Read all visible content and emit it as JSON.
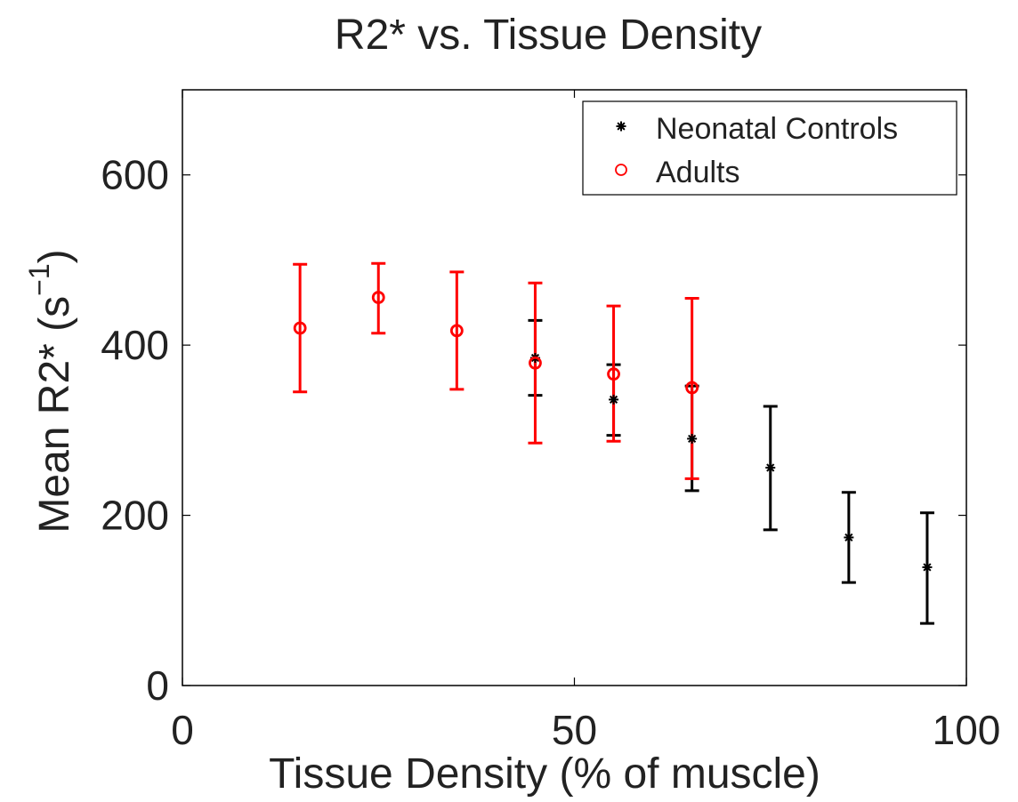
{
  "chart_data": {
    "type": "scatter",
    "title": "R2* vs. Tissue Density",
    "xlabel": "Tissue Density (% of muscle)",
    "ylabel_main": "Mean R2* (s",
    "ylabel_sup": "−1",
    "ylabel_close": ")",
    "xlim": [
      0,
      100
    ],
    "ylim": [
      0,
      700
    ],
    "xticks": [
      0,
      50,
      100
    ],
    "yticks": [
      0,
      200,
      400,
      600
    ],
    "xtick_labels": [
      "0",
      "50",
      "100"
    ],
    "ytick_labels": [
      "0",
      "200",
      "400",
      "600"
    ],
    "grid": false,
    "legend_position": "top-right",
    "series": [
      {
        "name": "Neonatal Controls",
        "marker": "asterisk",
        "color": "#000000",
        "x": [
          45,
          55,
          65,
          75,
          85,
          95
        ],
        "y": [
          385,
          336,
          290,
          256,
          174,
          139
        ],
        "err_low": [
          341,
          294,
          229,
          183,
          121,
          73
        ],
        "err_high": [
          429,
          377,
          352,
          328,
          227,
          203
        ]
      },
      {
        "name": "Adults",
        "marker": "circle",
        "color": "#ff0000",
        "x": [
          15,
          25,
          35,
          45,
          55,
          65
        ],
        "y": [
          420,
          456,
          417,
          379,
          366,
          350
        ],
        "err_low": [
          345,
          414,
          348,
          285,
          287,
          243
        ],
        "err_high": [
          495,
          496,
          486,
          473,
          446,
          455
        ]
      }
    ]
  }
}
